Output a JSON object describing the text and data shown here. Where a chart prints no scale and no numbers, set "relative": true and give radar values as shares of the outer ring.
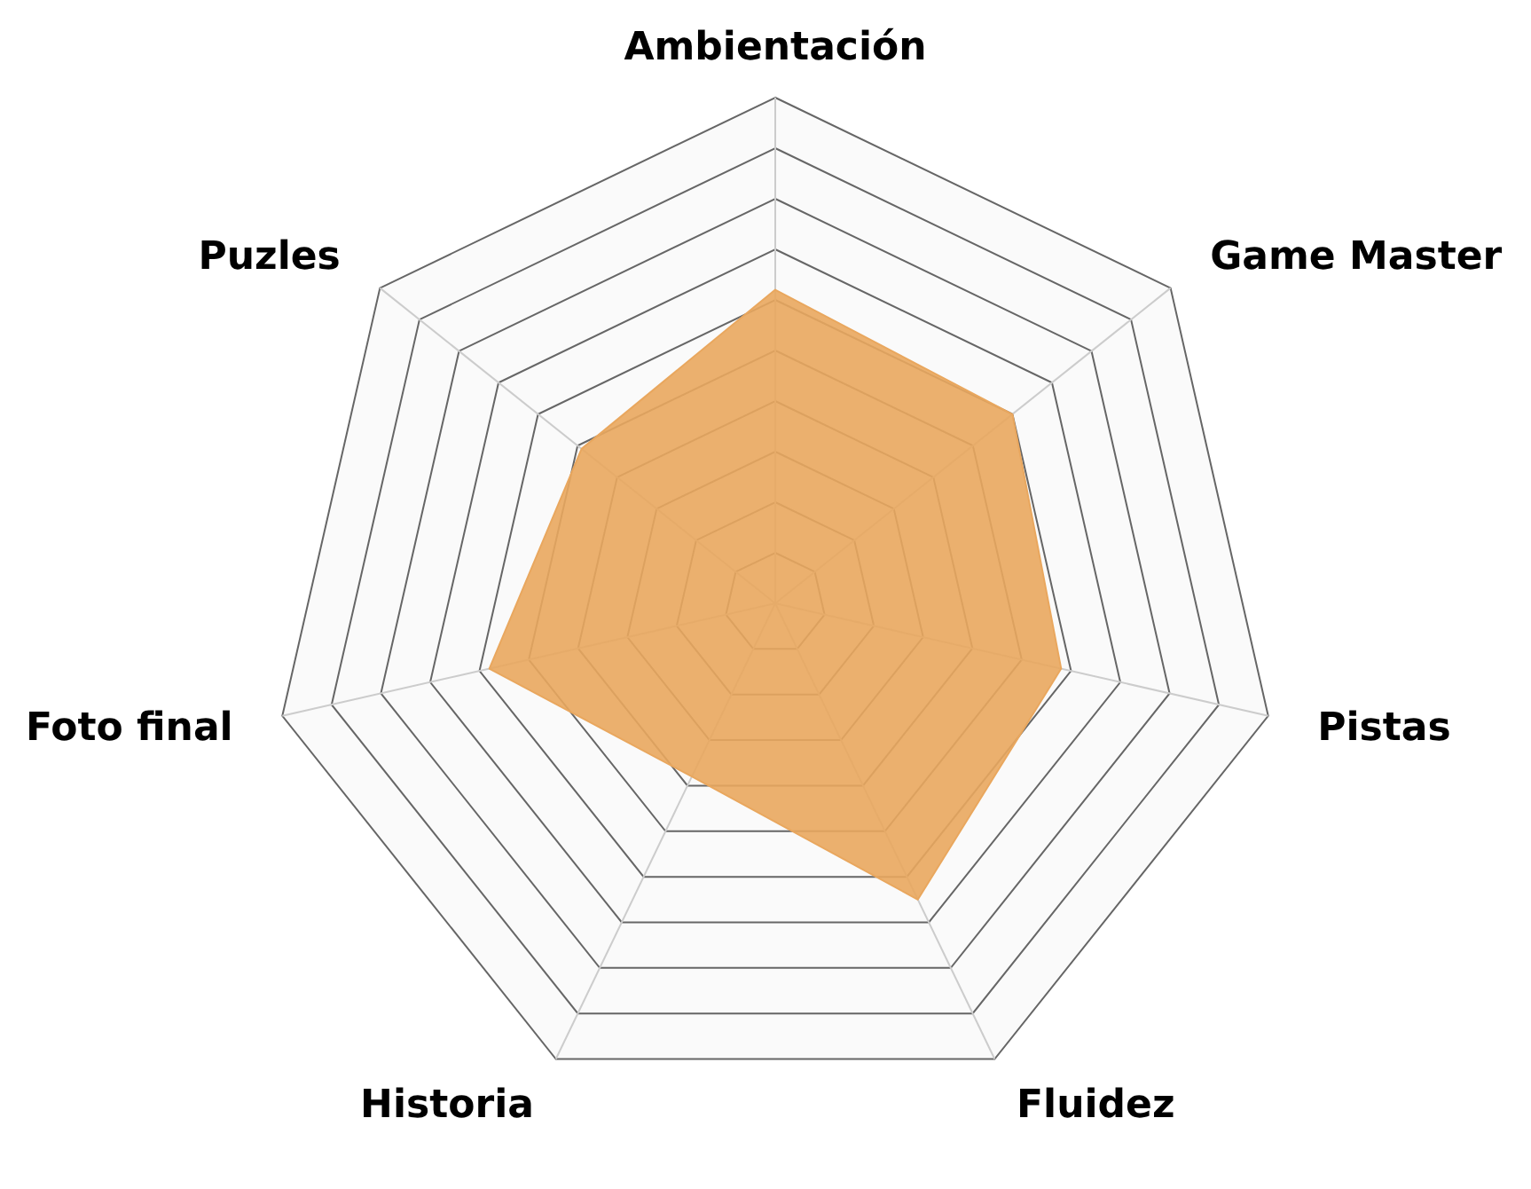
{
  "chart_data": {
    "type": "radar",
    "relative": true,
    "categories": [
      "Ambientación",
      "Game Master",
      "Pistas",
      "Fluidez",
      "Historia",
      "Foto final",
      "Puzles"
    ],
    "series": [
      {
        "color": "#e9a75e",
        "values": [
          0.62,
          0.6,
          0.58,
          0.65,
          0.38,
          0.58,
          0.49
        ]
      }
    ]
  }
}
